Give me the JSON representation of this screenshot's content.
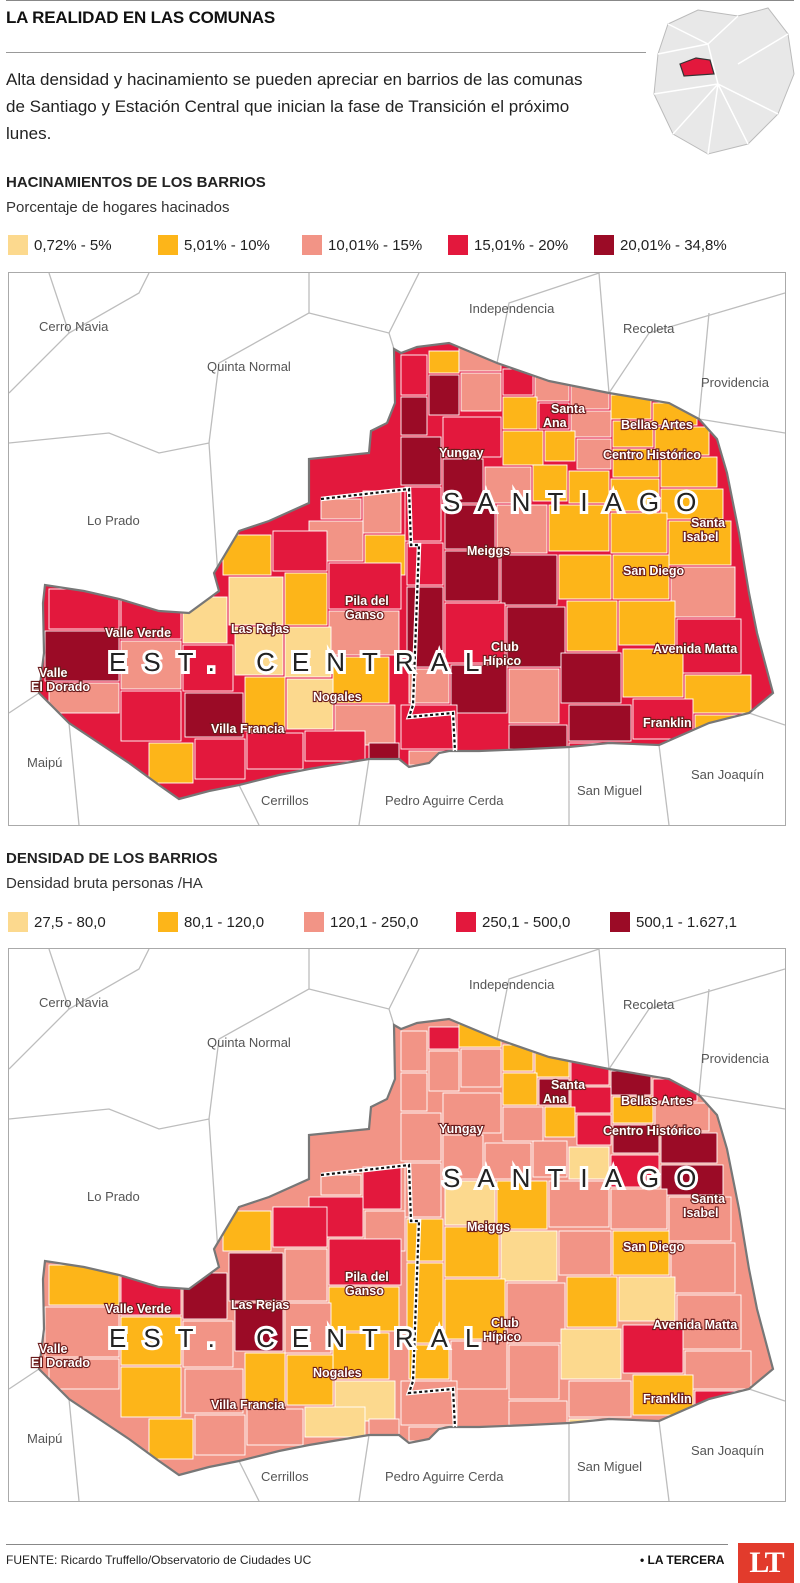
{
  "header": {
    "title": "LA REALIDAD EN LAS COMUNAS",
    "intro": "Alta densidad y hacinamiento se pueden apreciar en barrios de las comunas de Santiago y Estación Central que inician la fase de Transición el próximo lunes."
  },
  "colors": {
    "c1": "#fcd98e",
    "c2": "#fdb519",
    "c3": "#f29486",
    "c4": "#e3183d",
    "c5": "#9b0b26",
    "border": "#777777",
    "locator_fill": "#e3183d"
  },
  "maps": [
    {
      "id": "hacinamiento",
      "title": "HACINAMIENTOS DE LOS BARRIOS",
      "subtitle": "Porcentaje de hogares hacinados",
      "legend": [
        {
          "label": "0,72% - 5%",
          "color": "#fcd98e"
        },
        {
          "label": "5,01% - 10%",
          "color": "#fdb519"
        },
        {
          "label": "10,01% - 15%",
          "color": "#f29486"
        },
        {
          "label": "15,01% - 20%",
          "color": "#e3183d"
        },
        {
          "label": "20,01% - 34,8%",
          "color": "#9b0b26"
        }
      ]
    },
    {
      "id": "densidad",
      "title": "DENSIDAD DE LOS BARRIOS",
      "subtitle": "Densidad bruta personas /HA",
      "legend": [
        {
          "label": "27,5 - 80,0",
          "color": "#fcd98e"
        },
        {
          "label": "80,1 - 120,0",
          "color": "#fdb519"
        },
        {
          "label": "120,1 - 250,0",
          "color": "#f29486"
        },
        {
          "label": "250,1 - 500,0",
          "color": "#e3183d"
        },
        {
          "label": "500,1 - 1.627,1",
          "color": "#9b0b26"
        }
      ]
    }
  ],
  "labels": {
    "comunas": [
      "Cerro Navia",
      "Quinta Normal",
      "Independencia",
      "Recoleta",
      "Providencia",
      "Lo Prado",
      "Maipú",
      "Cerrillos",
      "Pedro Aguirre Cerda",
      "San Miguel",
      "San Joaquín"
    ],
    "barrios": [
      "Santa Ana",
      "Bellas Artes",
      "Yungay",
      "Centro Histórico",
      "Santa Isabel",
      "Meiggs",
      "San Diego",
      "Pila del Ganso",
      "Valle Verde",
      "Las Rejas",
      "Club Hípico",
      "Avenida Matta",
      "Valle El Dorado",
      "Nogales",
      "Villa Francia",
      "Franklin"
    ],
    "santiago": "SANTIAGO",
    "est_central": "EST. CENTRAL"
  },
  "footer": {
    "source": "FUENTE: Ricardo Truffello/Observatorio de Ciudades UC",
    "brand": "• LA TERCERA",
    "logo": "LT"
  }
}
